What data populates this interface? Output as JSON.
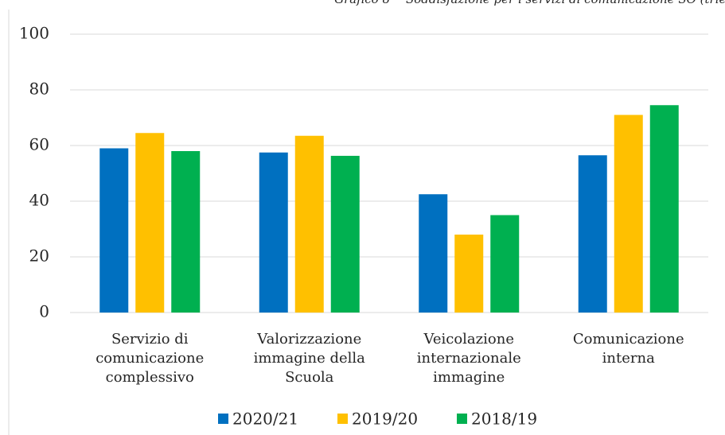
{
  "chart_data": {
    "type": "bar",
    "title_label": "Grafico 8",
    "title": "Soddisfazione per i servizi di comunicazione SO (triennio)",
    "categories": [
      [
        "Servizio di",
        "comunicazione",
        "complessivo"
      ],
      [
        "Valorizzazione",
        "immagine della",
        "Scuola"
      ],
      [
        "Veicolazione",
        "internazionale",
        "immagine"
      ],
      [
        "Comunicazione",
        "interna"
      ]
    ],
    "series": [
      {
        "name": "2020/21",
        "color": "#0070c0",
        "values": [
          59,
          57.5,
          42.5,
          56.5
        ]
      },
      {
        "name": "2019/20",
        "color": "#ffc000",
        "values": [
          64.5,
          63.5,
          28,
          71
        ]
      },
      {
        "name": "2018/19",
        "color": "#00b050",
        "values": [
          58,
          56.3,
          35,
          74.5
        ]
      }
    ],
    "ylim": [
      0,
      100
    ],
    "yticks": [
      0,
      20,
      40,
      60,
      80,
      100
    ],
    "grid": true,
    "legend": "bottom"
  }
}
